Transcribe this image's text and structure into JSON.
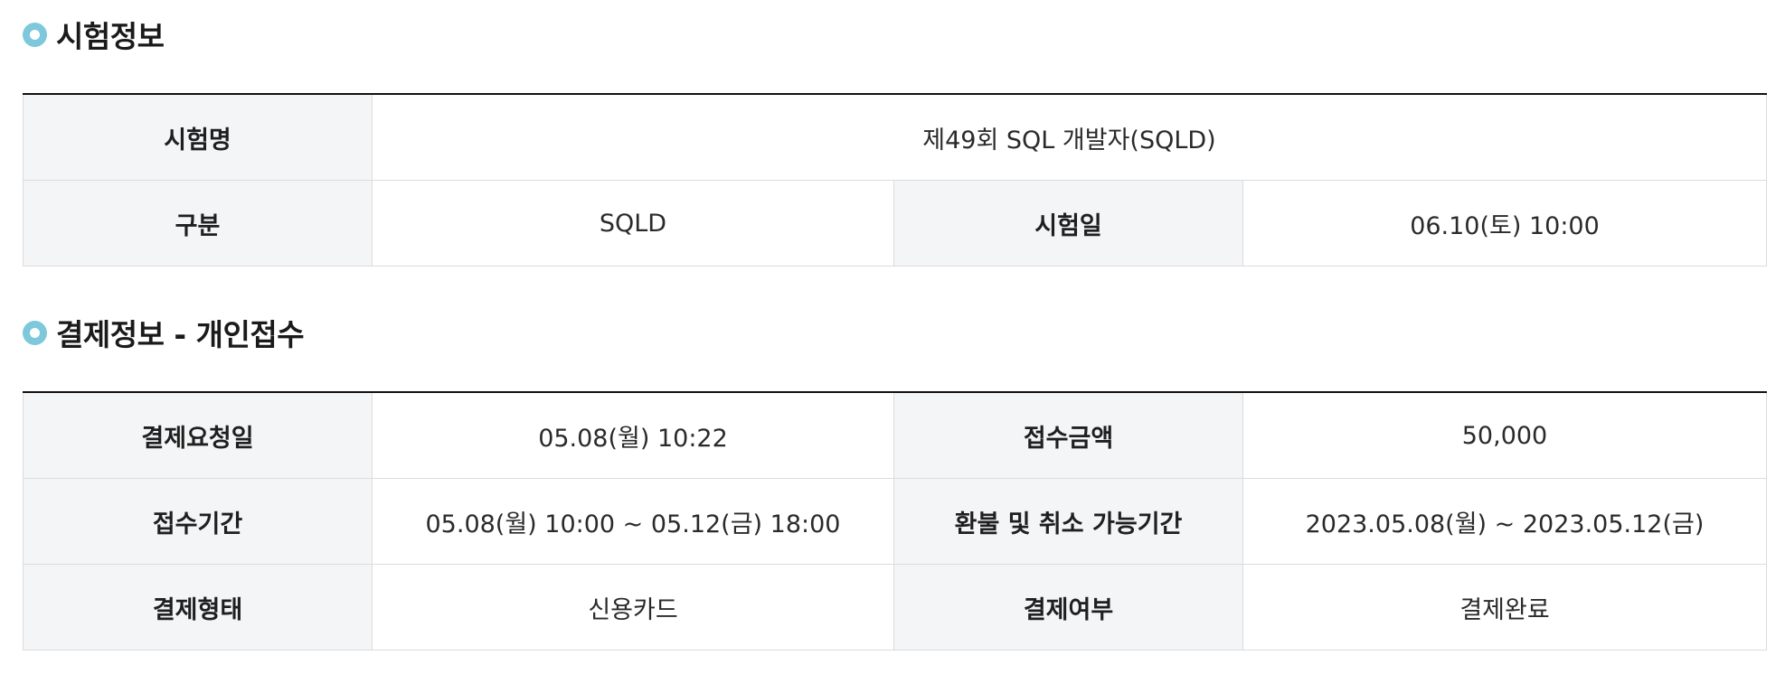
{
  "exam_section": {
    "title": "시험정보",
    "exam_name_label": "시험명",
    "exam_name_value": "제49회 SQL 개발자(SQLD)",
    "category_label": "구분",
    "category_value": "SQLD",
    "exam_date_label": "시험일",
    "exam_date_value": "06.10(토) 10:00"
  },
  "payment_section": {
    "title": "결제정보 - 개인접수",
    "request_date_label": "결제요청일",
    "request_date_value": "05.08(월) 10:22",
    "amount_label": "접수금액",
    "amount_value": "50,000",
    "period_label": "접수기간",
    "period_value": "05.08(월) 10:00 ~ 05.12(금) 18:00",
    "refund_label": "환불 및 취소 가능기간",
    "refund_value": "2023.05.08(월) ~ 2023.05.12(금)",
    "method_label": "결제형태",
    "method_value": "신용카드",
    "status_label": "결제여부",
    "status_value": "결제완료"
  },
  "colors": {
    "bullet": "#7ec8dc",
    "header_cell_bg": "#f4f5f7",
    "table_top_border": "#111111",
    "cell_border": "#dcdcdc"
  },
  "icons": {
    "section_bullet": "circle-bullet-icon"
  }
}
